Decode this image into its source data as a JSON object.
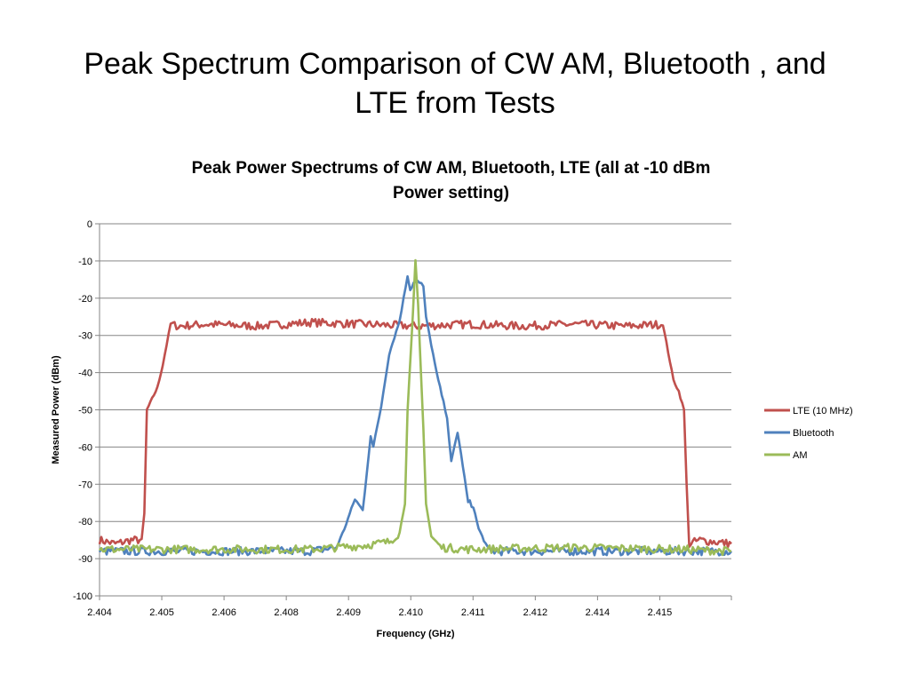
{
  "slide": {
    "title_line1": "Peak Spectrum Comparison of CW AM, Bluetooth , and",
    "title_line2": "LTE from Tests"
  },
  "chart_data": {
    "type": "line",
    "title_line1": "Peak Power Spectrums of CW AM, Bluetooth, LTE (all at -10 dBm",
    "title_line2": "Power setting)",
    "xlabel": "Frequency (GHz)",
    "ylabel": "Measured Power (dBm)",
    "xlim": [
      2.404,
      2.416
    ],
    "ylim": [
      -100,
      0
    ],
    "yticks": [
      0,
      -10,
      -20,
      -30,
      -40,
      -50,
      -60,
      -70,
      -80,
      -90,
      -100
    ],
    "xtick_labels": [
      "2.404",
      "2.405",
      "2.406",
      "2.408",
      "2.409",
      "2.410",
      "2.411",
      "2.412",
      "2.414",
      "2.415"
    ],
    "grid": "horizontal",
    "legend_position": "right",
    "colors": {
      "LTE (10 MHz)": "#c0504d",
      "Bluetooth": "#4f81bd",
      "AM": "#9bbb59"
    },
    "series": [
      {
        "name": "LTE (10 MHz)",
        "x": [
          2.404,
          2.4043,
          2.4046,
          2.4048,
          2.40485,
          2.4049,
          2.405,
          2.4051,
          2.4052,
          2.40535,
          2.4055,
          2.406,
          2.407,
          2.408,
          2.409,
          2.41,
          2.411,
          2.412,
          2.413,
          2.414,
          2.4147,
          2.4149,
          2.415,
          2.4151,
          2.41515,
          2.4152,
          2.4154,
          2.4157,
          2.416
        ],
        "y": [
          -85,
          -86,
          -85,
          -85,
          -78,
          -50,
          -47,
          -44,
          -38,
          -27,
          -27.5,
          -27,
          -27.5,
          -26.5,
          -27,
          -27.5,
          -27,
          -27.5,
          -27,
          -27.5,
          -27,
          -42,
          -45,
          -50,
          -70,
          -86,
          -85,
          -85.5,
          -86
        ]
      },
      {
        "name": "Bluetooth",
        "x": [
          2.404,
          2.406,
          2.408,
          2.4085,
          2.40865,
          2.40885,
          2.409,
          2.40915,
          2.4092,
          2.40935,
          2.4095,
          2.4097,
          2.40985,
          2.4099,
          2.41,
          2.41015,
          2.4102,
          2.4104,
          2.4106,
          2.41068,
          2.4108,
          2.4109,
          2.411,
          2.4111,
          2.4112,
          2.4114,
          2.412,
          2.413,
          2.414,
          2.415,
          2.416
        ],
        "y": [
          -88,
          -88,
          -88,
          -87,
          -82,
          -74,
          -77,
          -57,
          -60,
          -49,
          -35,
          -26,
          -14,
          -17,
          -15,
          -17,
          -25,
          -40,
          -52,
          -64,
          -56,
          -65,
          -75,
          -76,
          -82,
          -88,
          -88,
          -88,
          -88,
          -88,
          -88
        ]
      },
      {
        "name": "AM",
        "x": [
          2.404,
          2.406,
          2.408,
          2.409,
          2.4095,
          2.4097,
          2.4098,
          2.40985,
          2.40995,
          2.41,
          2.41005,
          2.41015,
          2.4102,
          2.4103,
          2.4105,
          2.411,
          2.413,
          2.415,
          2.416
        ],
        "y": [
          -87.5,
          -87.5,
          -87.5,
          -86.5,
          -85.5,
          -83,
          -75,
          -50,
          -25,
          -10,
          -22,
          -55,
          -75,
          -84,
          -87,
          -87.5,
          -87,
          -87.5,
          -88
        ]
      }
    ]
  }
}
